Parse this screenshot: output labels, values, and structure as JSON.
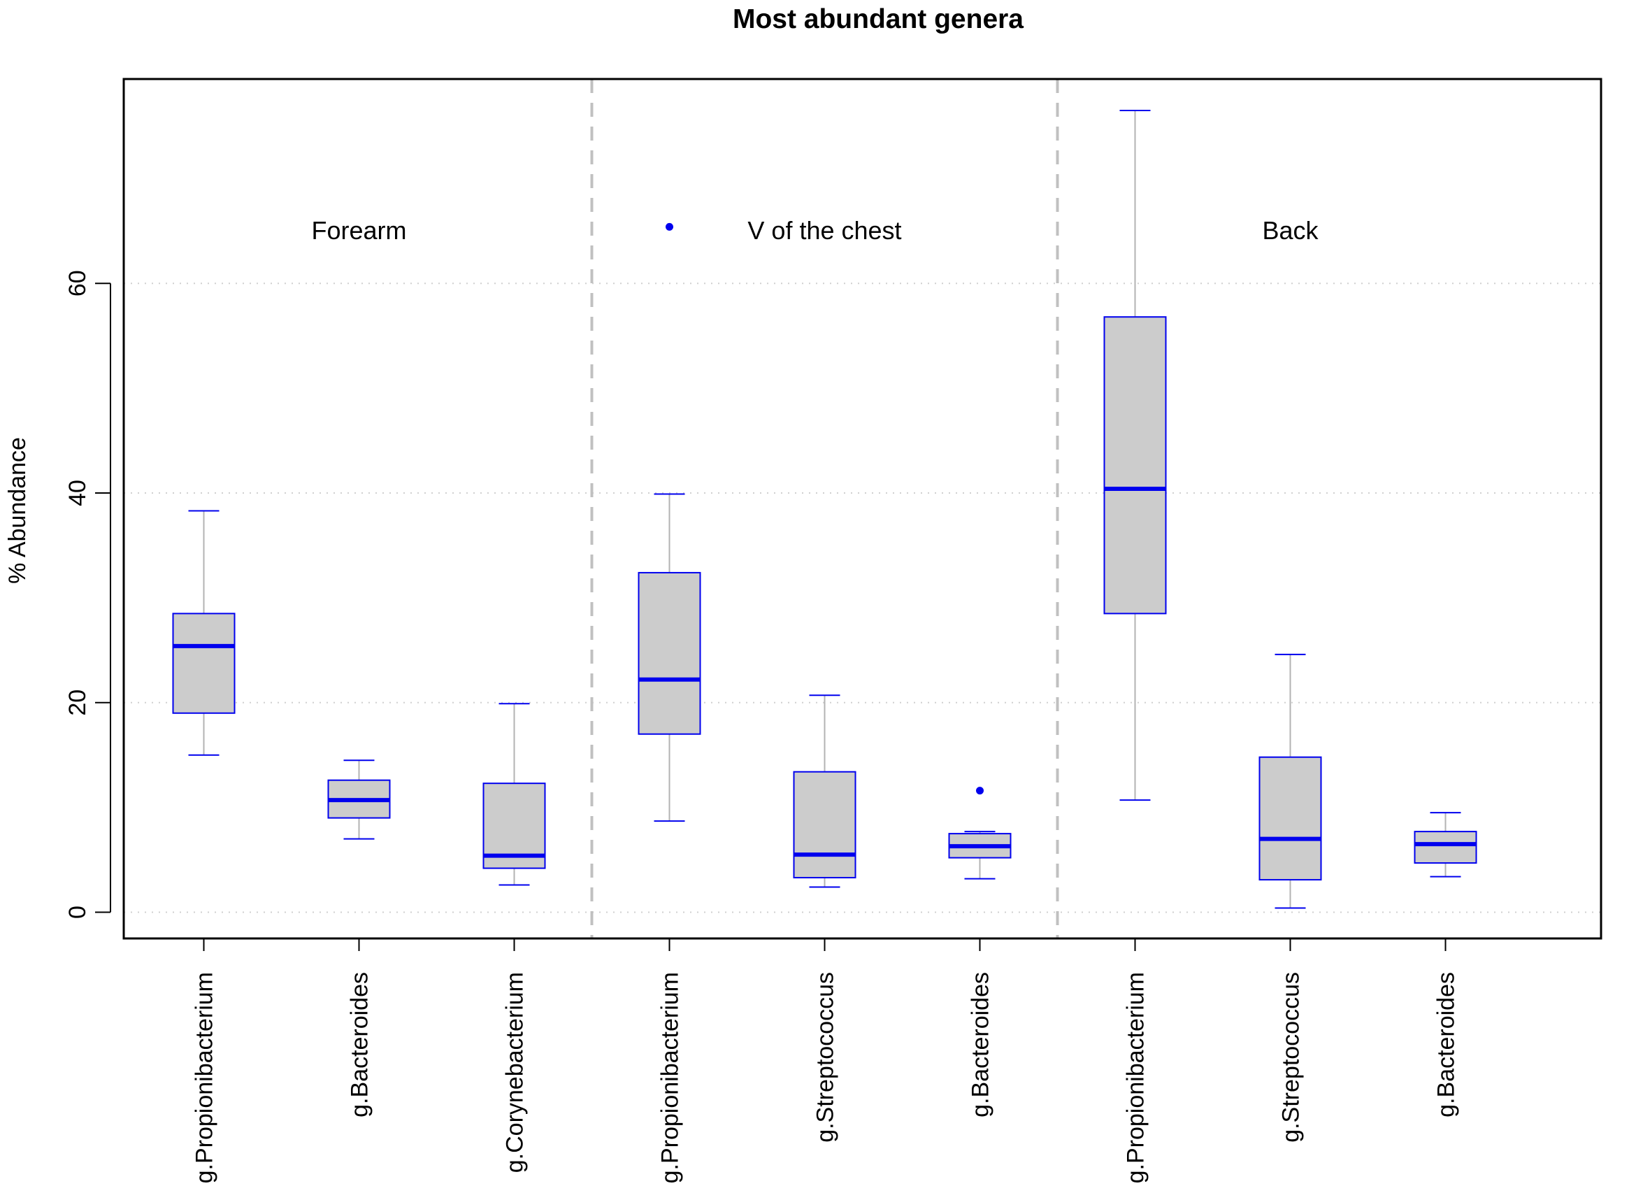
{
  "chart_data": {
    "type": "boxplot",
    "title": "Most abundant genera",
    "xlabel": "",
    "ylabel": "% Abundance",
    "ylim": [
      -2.5,
      79.5
    ],
    "yticks": [
      0,
      20,
      40,
      60
    ],
    "grid": "horizontal-dotted",
    "colors": {
      "box_fill": "#cccccc",
      "box_border": "#0000ee",
      "median": "#0000ee",
      "whisker": "#b3b3b3",
      "outlier": "#0000ee",
      "separator": "#c0c0c0",
      "grid": "#d0d0d0"
    },
    "groups": [
      {
        "label": "Forearm",
        "start": 0,
        "end": 2
      },
      {
        "label": "V of the chest",
        "start": 3,
        "end": 5
      },
      {
        "label": "Back",
        "start": 6,
        "end": 8
      }
    ],
    "categories": [
      "g.Propionibacterium",
      "g.Bacteroides",
      "g.Corynebacterium",
      "g.Propionibacterium",
      "g.Streptococcus",
      "g.Bacteroides",
      "g.Propionibacterium",
      "g.Streptococcus",
      "g.Bacteroides"
    ],
    "series": [
      {
        "group": "Forearm",
        "name": "g.Propionibacterium",
        "min": 15.0,
        "q1": 19.0,
        "median": 25.4,
        "q3": 28.5,
        "max": 38.3,
        "outliers": []
      },
      {
        "group": "Forearm",
        "name": "g.Bacteroides",
        "min": 7.0,
        "q1": 9.0,
        "median": 10.7,
        "q3": 12.6,
        "max": 14.5,
        "outliers": []
      },
      {
        "group": "Forearm",
        "name": "g.Corynebacterium",
        "min": 2.6,
        "q1": 4.2,
        "median": 5.4,
        "q3": 12.3,
        "max": 19.9,
        "outliers": []
      },
      {
        "group": "V of the chest",
        "name": "g.Propionibacterium",
        "min": 8.7,
        "q1": 17.0,
        "median": 22.2,
        "q3": 32.4,
        "max": 39.9,
        "outliers": [
          65.4
        ]
      },
      {
        "group": "V of the chest",
        "name": "g.Streptococcus",
        "min": 2.4,
        "q1": 3.3,
        "median": 5.5,
        "q3": 13.4,
        "max": 20.7,
        "outliers": []
      },
      {
        "group": "V of the chest",
        "name": "g.Bacteroides",
        "min": 3.2,
        "q1": 5.2,
        "median": 6.3,
        "q3": 7.5,
        "max": 7.7,
        "outliers": [
          11.6
        ]
      },
      {
        "group": "Back",
        "name": "g.Propionibacterium",
        "min": 10.7,
        "q1": 28.5,
        "median": 40.4,
        "q3": 56.8,
        "max": 76.5,
        "outliers": []
      },
      {
        "group": "Back",
        "name": "g.Streptococcus",
        "min": 0.4,
        "q1": 3.1,
        "median": 7.0,
        "q3": 14.8,
        "max": 24.6,
        "outliers": []
      },
      {
        "group": "Back",
        "name": "g.Bacteroides",
        "min": 3.4,
        "q1": 4.7,
        "median": 6.5,
        "q3": 7.7,
        "max": 9.5,
        "outliers": []
      }
    ]
  }
}
